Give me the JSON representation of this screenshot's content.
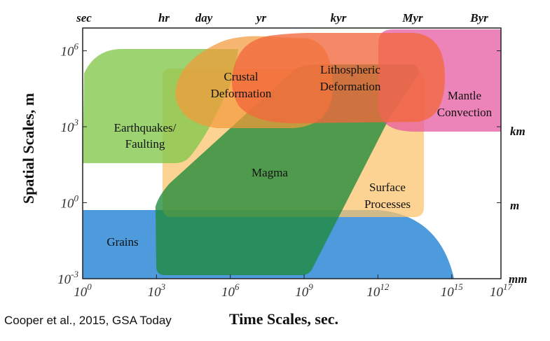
{
  "chart_data": {
    "type": "diagram",
    "xlabel": "Time Scales, sec.",
    "ylabel": "Spatial Scales, m",
    "x_log_range": [
      0,
      17
    ],
    "y_log_range": [
      -3,
      6.9
    ],
    "x_ticks": [
      {
        "base": "10",
        "exp": "0",
        "log": 0
      },
      {
        "base": "10",
        "exp": "3",
        "log": 3
      },
      {
        "base": "10",
        "exp": "6",
        "log": 6
      },
      {
        "base": "10",
        "exp": "9",
        "log": 9
      },
      {
        "base": "10",
        "exp": "12",
        "log": 12
      },
      {
        "base": "10",
        "exp": "15",
        "log": 15
      },
      {
        "base": "10",
        "exp": "17",
        "log": 17
      }
    ],
    "y_ticks": [
      {
        "base": "10",
        "exp": "-3",
        "log": -3
      },
      {
        "base": "10",
        "exp": "0",
        "log": 0
      },
      {
        "base": "10",
        "exp": "3",
        "log": 3
      },
      {
        "base": "10",
        "exp": "6",
        "log": 6
      }
    ],
    "top_ticks": [
      "sec",
      "hr",
      "day",
      "yr",
      "kyr",
      "Myr",
      "Byr"
    ],
    "right_ticks": [
      "km",
      "m",
      "mm"
    ],
    "regions": [
      {
        "label": [
          "Grains"
        ],
        "color": "#3a8fd9"
      },
      {
        "label": [
          "Surface",
          "Processes"
        ],
        "color": "#fbc46e"
      },
      {
        "label": [
          "Earthquakes/",
          "Faulting"
        ],
        "color": "#84c94d"
      },
      {
        "label": [
          "Magma"
        ],
        "color": "#1f8a3a"
      },
      {
        "label": [
          "Mantle",
          "Convection"
        ],
        "color": "#e6559e"
      },
      {
        "label": [
          "Crustal",
          "Deformation"
        ],
        "color": "#f29a3a"
      },
      {
        "label": [
          "Lithospheric",
          "Deformation"
        ],
        "color": "#f2683c"
      }
    ]
  },
  "citation": "Cooper et al., 2015, GSA Today"
}
